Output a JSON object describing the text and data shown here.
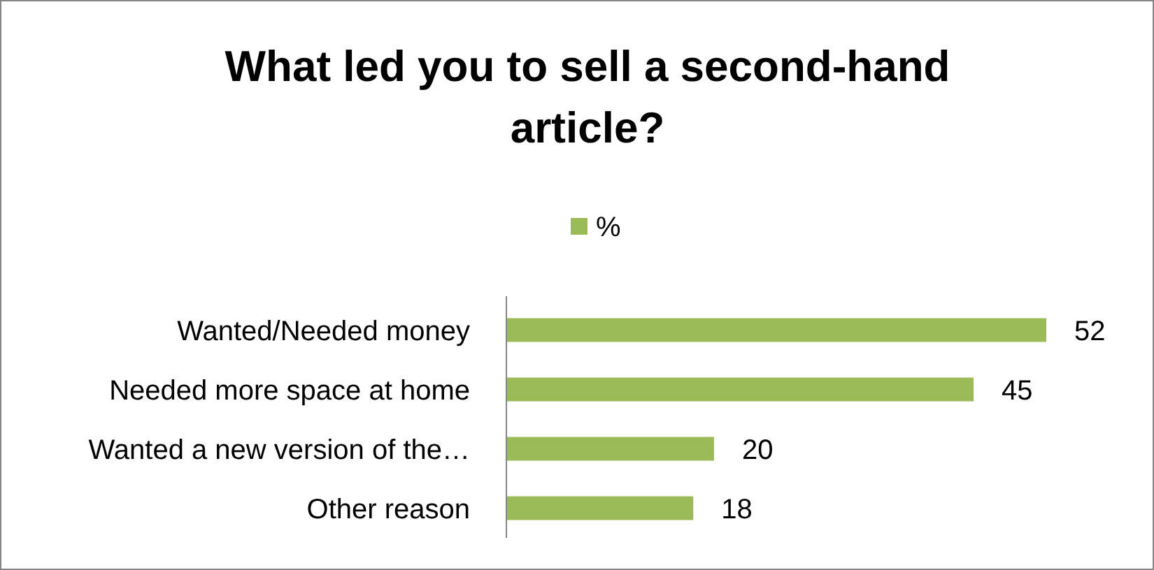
{
  "chart_data": {
    "type": "bar",
    "orientation": "horizontal",
    "title": "What led you to sell a second-hand article?",
    "categories": [
      "Wanted/Needed money",
      "Needed more space at home",
      "Wanted a new version of the…",
      "Other reason"
    ],
    "series": [
      {
        "name": "%",
        "color": "#9bbb59",
        "values": [
          52,
          45,
          20,
          18
        ]
      }
    ],
    "data_labels": true,
    "legend": "top"
  }
}
